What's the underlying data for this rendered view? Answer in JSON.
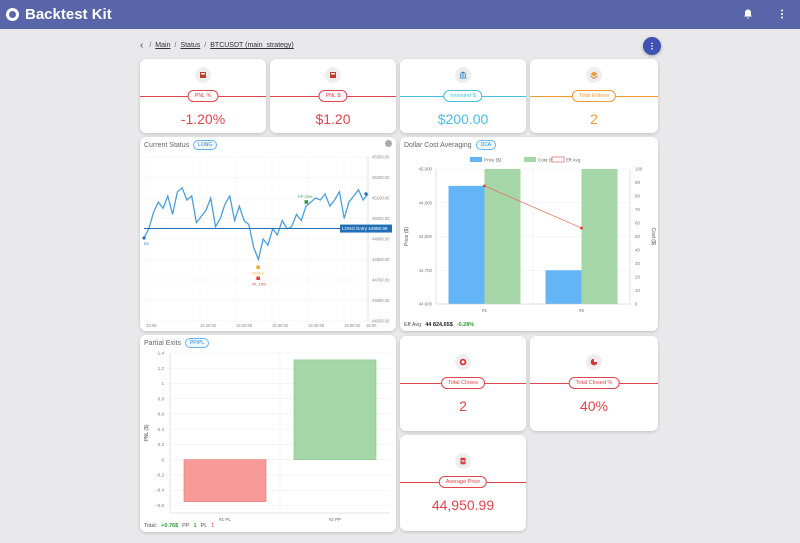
{
  "app": {
    "title": "Backtest Kit"
  },
  "breadcrumb": {
    "items": [
      "Main",
      "Status",
      "BTCUSDT (main_strategy)"
    ]
  },
  "kpis": [
    {
      "label": "PNL %",
      "value": "-1.20%",
      "color": "#e0444c",
      "icon": "calculator-icon"
    },
    {
      "label": "PNL $",
      "value": "$1.20",
      "color": "#e0444c",
      "icon": "calculator-icon"
    },
    {
      "label": "Invested $",
      "value": "$200.00",
      "color": "#4bbde2",
      "icon": "bank-icon"
    },
    {
      "label": "Total Entries",
      "value": "2",
      "color": "#f19a33",
      "icon": "layers-icon"
    }
  ],
  "kpis_bottom": [
    {
      "label": "Total Closes",
      "value": "2",
      "color": "#e0444c",
      "icon": "target-icon"
    },
    {
      "label": "Total Closed %",
      "value": "40%",
      "color": "#e0444c",
      "icon": "pie-icon"
    },
    {
      "label": "Average Price",
      "value": "44,950.99",
      "color": "#e0444c",
      "icon": "document-icon"
    }
  ],
  "current_status": {
    "title": "Current Status",
    "tag": "LONG",
    "entry_label": "LONG Entry",
    "entry_price": "44950.99",
    "markers": {
      "pp": "PP 25%",
      "pl": "PL 15%",
      "dca": "DCA 1",
      "e": "E0"
    },
    "y_ticks": [
      "45300.00",
      "45200.00",
      "45100.00",
      "45000.00",
      "44900.00",
      "44800.00",
      "44700.00",
      "44600.00",
      "44500.00"
    ],
    "x_ticks": [
      "15:00",
      "15:10:00",
      "15:20:00",
      "15:30:00",
      "15:40:00",
      "15:50:00",
      "16:00"
    ],
    "series": [
      44905,
      44950,
      45030,
      45080,
      45050,
      45110,
      45020,
      45130,
      45150,
      45090,
      45110,
      44980,
      45010,
      45040,
      45100,
      44960,
      45000,
      45070,
      45110,
      44990,
      45060,
      44990,
      44970,
      44860,
      44800,
      44900,
      44870,
      44950,
      44920,
      44990,
      44950,
      44960,
      45020,
      44990,
      45060,
      45080,
      45100,
      45090,
      45120,
      45060,
      45090,
      45130,
      45000,
      45080,
      45110,
      45140,
      45090,
      45120
    ]
  },
  "dca": {
    "title": "Dollar Cost Averaging",
    "tag": "DCA",
    "legend": [
      "Price ($)",
      "Cost ($)",
      "Eff Avg"
    ],
    "footer_label": "Eff Avg",
    "footer_value": "44 824,65$",
    "footer_pct": "-0.28%"
  },
  "partial": {
    "title": "Partial Exits",
    "tag": "PP/PL",
    "footer": {
      "total_label": "Total:",
      "total_value": "+0.76$",
      "pp_label": "PP",
      "pp_value": "1",
      "pl_label": "PL",
      "pl_value": "1"
    }
  },
  "chart_data": [
    {
      "type": "bar",
      "title": "Dollar Cost Averaging",
      "categories": [
        "#1",
        "#2"
      ],
      "series": [
        {
          "name": "Price ($)",
          "values": [
            44950,
            44700
          ],
          "axis": "left"
        },
        {
          "name": "Cost ($)",
          "values": [
            100,
            100
          ],
          "axis": "right"
        },
        {
          "name": "Eff Avg",
          "type": "line",
          "values": [
            44950,
            44825
          ],
          "axis": "left"
        }
      ],
      "ylabel": "Price ($)",
      "y2label": "Cost ($)",
      "ylim": [
        44600,
        45000
      ],
      "y2lim": [
        0,
        100
      ],
      "y_ticks": [
        "45,000",
        "44,900",
        "44,800",
        "44,700",
        "44,600"
      ],
      "y2_ticks": [
        "100",
        "90",
        "80",
        "70",
        "60",
        "50",
        "40",
        "30",
        "20",
        "10",
        "0"
      ]
    },
    {
      "type": "bar",
      "title": "Partial Exits",
      "categories": [
        "#1 PL",
        "#2 PP"
      ],
      "values": [
        -0.55,
        1.31
      ],
      "ylabel": "PNL ($)",
      "ylim": [
        -0.7,
        1.4
      ],
      "y_ticks": [
        "1.4",
        "1.2",
        "1",
        "0.8",
        "0.6",
        "0.4",
        "0.2",
        "0",
        "-0.2",
        "-0.4",
        "-0.6"
      ]
    }
  ],
  "colors": {
    "appbar": "#5865a8",
    "blue_bar": "#64b5f6",
    "green_bar": "#a5d6a7",
    "red_bar": "#f79a98",
    "line": "#4a9fd8"
  }
}
